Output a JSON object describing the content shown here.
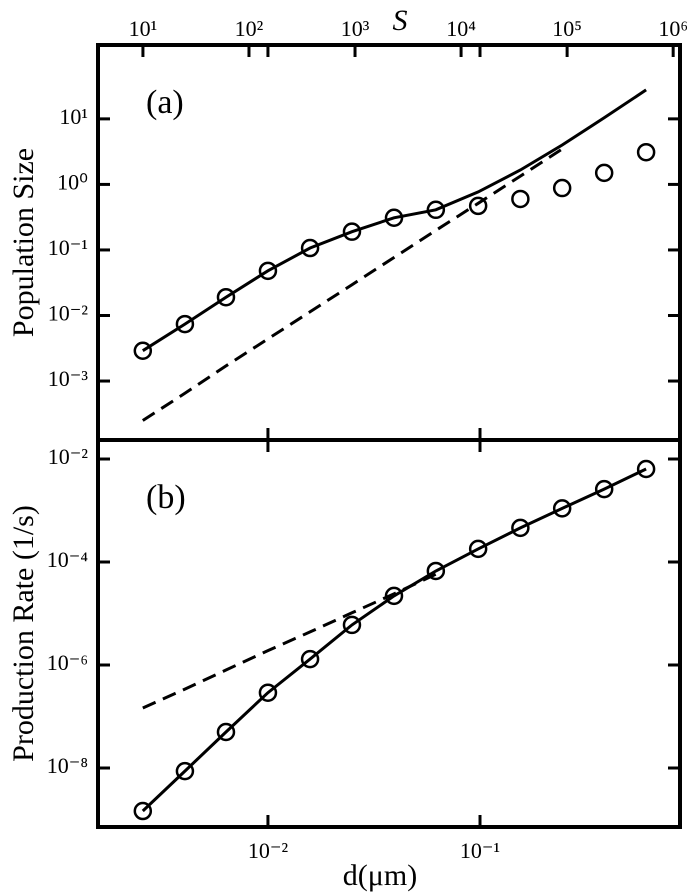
{
  "chart_data": [
    {
      "type": "line",
      "panel_label": "(a)",
      "ylabel": "Population Size",
      "x2label": "S",
      "log_x": true,
      "log_y": true,
      "xlim": [
        0.00158,
        0.877
      ],
      "xticks": [
        0.01,
        0.1
      ],
      "x2lim": [
        3.77,
        1160000
      ],
      "x2ticks": [
        {
          "value": 10,
          "label": "10¹"
        },
        {
          "value": 100,
          "label": "10²"
        },
        {
          "value": 1000,
          "label": "10³"
        },
        {
          "value": 10000,
          "label": "10⁴"
        },
        {
          "value": 100000,
          "label": "10⁵"
        },
        {
          "value": 1000000,
          "label": "10⁶"
        }
      ],
      "ylim": [
        0.000126,
        134
      ],
      "yticks": [
        {
          "value": 0.001,
          "label": "10⁻³"
        },
        {
          "value": 0.01,
          "label": "10⁻²"
        },
        {
          "value": 0.1,
          "label": "10⁻¹"
        },
        {
          "value": 1,
          "label": "10⁰"
        },
        {
          "value": 10,
          "label": "10¹"
        }
      ],
      "x": [
        0.00257,
        0.00406,
        0.00634,
        0.01,
        0.0158,
        0.0249,
        0.0393,
        0.0619,
        0.098,
        0.155,
        0.244,
        0.385,
        0.607
      ],
      "series": [
        {
          "style": "solid",
          "color": "#000000",
          "values": [
            0.0029,
            0.0074,
            0.019,
            0.048,
            0.107,
            0.19,
            0.31,
            0.41,
            0.77,
            1.66,
            4.0,
            10.4,
            27.7
          ]
        },
        {
          "style": "dashed",
          "color": "#000000",
          "values": [
            0.00025,
            0.00065,
            0.0017,
            0.0044,
            0.0114,
            0.0295,
            0.0766,
            0.199,
            0.515,
            1.34,
            3.47,
            null,
            null
          ]
        },
        {
          "style": "circle",
          "color": "#000000",
          "values": [
            0.0029,
            0.0074,
            0.019,
            0.048,
            0.107,
            0.19,
            0.31,
            0.41,
            0.47,
            0.6,
            0.88,
            1.5,
            3.1
          ]
        }
      ]
    },
    {
      "type": "line",
      "panel_label": "(b)",
      "ylabel": "Production Rate (1/s)",
      "xlabel": "d(μm)",
      "log_x": true,
      "log_y": true,
      "xlim": [
        0.00158,
        0.877
      ],
      "xticks": [
        {
          "value": 0.01,
          "label": "10⁻²"
        },
        {
          "value": 0.1,
          "label": "10⁻¹"
        }
      ],
      "ylim": [
        7.15e-10,
        0.0234
      ],
      "yticks": [
        {
          "value": 1e-08,
          "label": "10⁻⁸"
        },
        {
          "value": 1e-06,
          "label": "10⁻⁶"
        },
        {
          "value": 0.0001,
          "label": "10⁻⁴"
        },
        {
          "value": 0.01,
          "label": "10⁻²"
        }
      ],
      "x": [
        0.00257,
        0.00406,
        0.00634,
        0.01,
        0.0158,
        0.0249,
        0.0393,
        0.0619,
        0.098,
        0.155,
        0.244,
        0.385,
        0.607
      ],
      "series": [
        {
          "style": "solid",
          "color": "#000000",
          "values": [
            1.46e-09,
            8.7e-09,
            5e-08,
            2.9e-07,
            1.3e-06,
            6e-06,
            2.2e-05,
            6.7e-05,
            0.00018,
            0.00046,
            0.0011,
            0.0026,
            0.0064
          ]
        },
        {
          "style": "dashed",
          "color": "#000000",
          "values": [
            1.46e-07,
            3.4e-07,
            8e-07,
            1.9e-06,
            4.4e-06,
            1.03e-05,
            2.4e-05,
            5.8e-05,
            null,
            null,
            null,
            null,
            null
          ]
        },
        {
          "style": "circle",
          "color": "#000000",
          "values": [
            1.46e-09,
            8.7e-09,
            5e-08,
            2.9e-07,
            1.3e-06,
            6e-06,
            2.2e-05,
            6.7e-05,
            0.00018,
            0.00046,
            0.0011,
            0.0026,
            0.0064
          ]
        }
      ]
    }
  ]
}
